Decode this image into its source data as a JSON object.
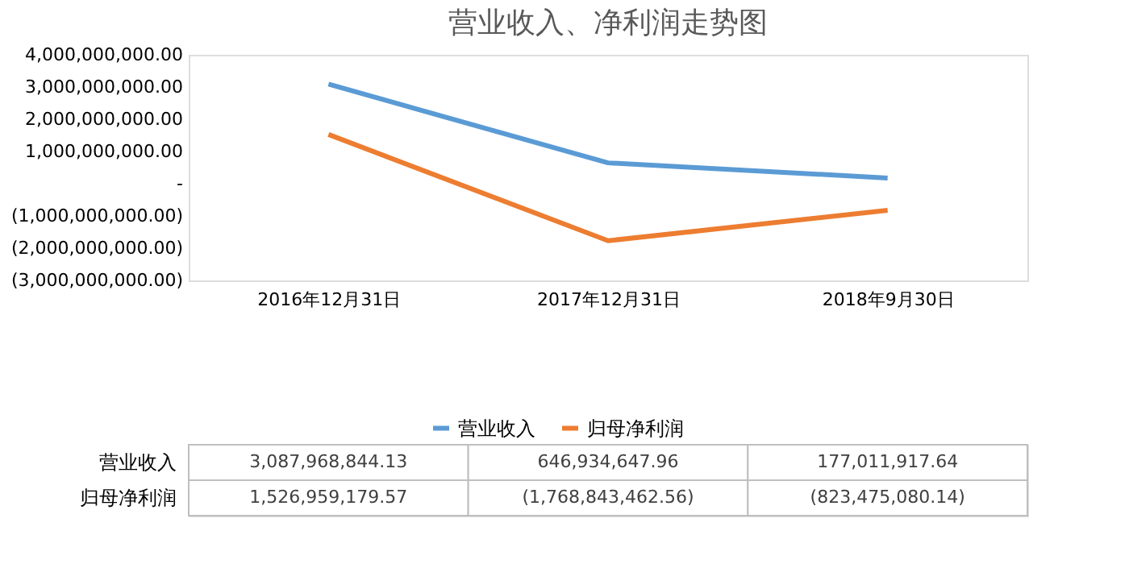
{
  "chart_data": {
    "type": "line",
    "title": "营业收入、净利润走势图",
    "categories": [
      "2016年12月31日",
      "2017年12月31日",
      "2018年9月30日"
    ],
    "series": [
      {
        "name": "营业收入",
        "color": "#5b9bd5",
        "values": [
          3087968844.13,
          646934647.96,
          177011917.64
        ],
        "value_labels": [
          "3,087,968,844.13",
          "646,934,647.96",
          "177,011,917.64"
        ]
      },
      {
        "name": "归母净利润",
        "color": "#ed7d31",
        "values": [
          1526959179.57,
          -1768843462.56,
          -823475080.14
        ],
        "value_labels": [
          "1,526,959,179.57",
          "(1,768,843,462.56)",
          "(823,475,080.14)"
        ]
      }
    ],
    "ylim": [
      -3000000000,
      4000000000
    ],
    "yticks": [
      {
        "value": 4000000000,
        "label": "4,000,000,000.00"
      },
      {
        "value": 3000000000,
        "label": "3,000,000,000.00"
      },
      {
        "value": 2000000000,
        "label": "2,000,000,000.00"
      },
      {
        "value": 1000000000,
        "label": "1,000,000,000.00"
      },
      {
        "value": 0,
        "label": "-"
      },
      {
        "value": -1000000000,
        "label": "(1,000,000,000.00)"
      },
      {
        "value": -2000000000,
        "label": "(2,000,000,000.00)"
      },
      {
        "value": -3000000000,
        "label": "(3,000,000,000.00)"
      }
    ],
    "grid": false,
    "legend": "bottom",
    "marker": "none",
    "line_style": "solid"
  }
}
